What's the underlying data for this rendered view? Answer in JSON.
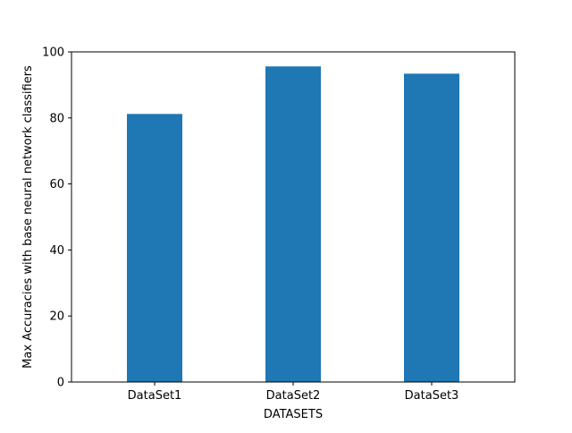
{
  "chart_data": {
    "type": "bar",
    "title": "",
    "xlabel": "DATASETS",
    "ylabel": "Max Accuracies with base neural network classifiers",
    "categories": [
      "DataSet1",
      "DataSet2",
      "DataSet3"
    ],
    "values": [
      81.2,
      95.6,
      93.4
    ],
    "ylim": [
      0,
      100
    ],
    "yticks": [
      0,
      20,
      40,
      60,
      80,
      100
    ],
    "grid": false,
    "legend": "none",
    "bar_color": "#1f77b4"
  }
}
